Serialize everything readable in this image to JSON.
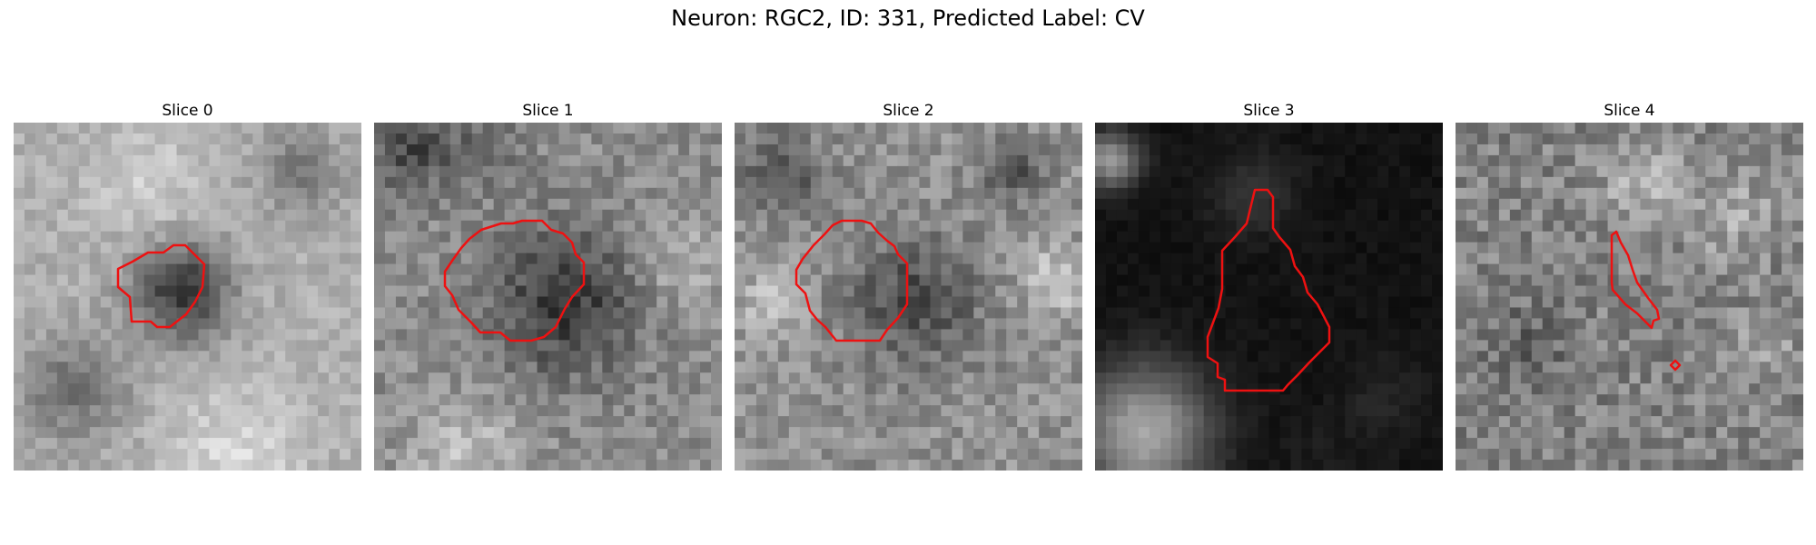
{
  "figure": {
    "title": "Neuron: RGC2, ID: 331, Predicted Label: CV",
    "contour_color": "#ee1111"
  },
  "panels": [
    {
      "title": "Slice 0"
    },
    {
      "title": "Slice 1"
    },
    {
      "title": "Slice 2"
    },
    {
      "title": "Slice 3"
    },
    {
      "title": "Slice 4"
    }
  ]
}
